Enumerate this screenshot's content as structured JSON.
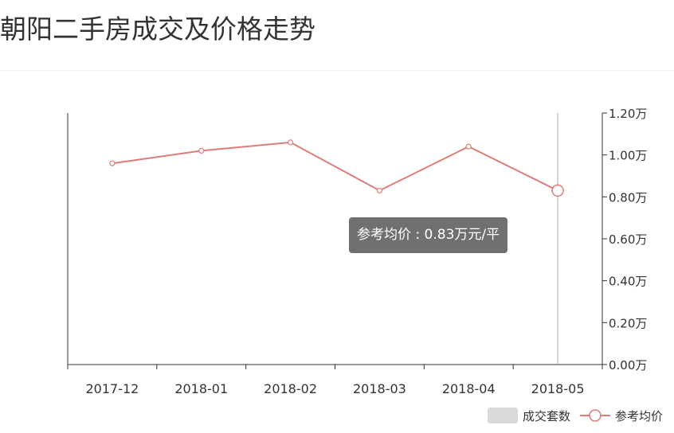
{
  "page": {
    "title": "朝阳二手房成交及价格走势"
  },
  "chart_data": {
    "type": "line",
    "categories": [
      "2017-12",
      "2018-01",
      "2018-02",
      "2018-03",
      "2018-04",
      "2018-05"
    ],
    "series": [
      {
        "name": "参考均价",
        "values": [
          0.96,
          1.02,
          1.06,
          0.83,
          1.04,
          0.83
        ],
        "color": "#e07b7b"
      }
    ],
    "bar_series_legend": {
      "name": "成交套数",
      "color": "#d9d9d9"
    },
    "y_axis": {
      "min": 0,
      "max": 1.2,
      "step": 0.2,
      "tick_labels": [
        "0.00万",
        "0.20万",
        "0.40万",
        "0.60万",
        "0.80万",
        "1.00万",
        "1.20万"
      ],
      "position": "right"
    },
    "grid": false,
    "legend_position": "bottom-right",
    "highlight_index": 5,
    "tooltip": {
      "text": "参考均价 : 0.83万元/平"
    }
  }
}
